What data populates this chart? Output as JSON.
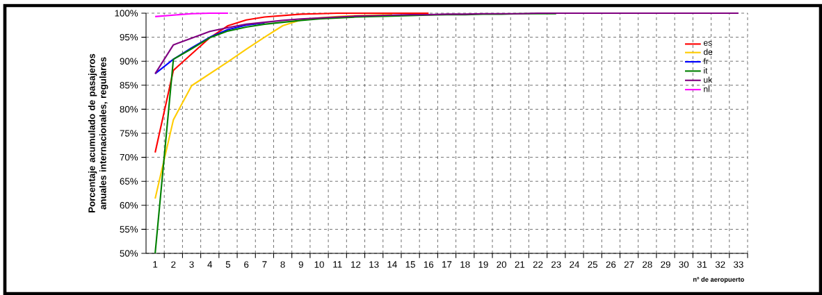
{
  "chart_data": {
    "type": "line",
    "xlabel": "nº de aeropuerto",
    "ylabel": "Porcentaje acumulado de pasajeros anuales internacionales, regulares",
    "categories": [
      "1",
      "2",
      "3",
      "4",
      "5",
      "6",
      "7",
      "8",
      "9",
      "10",
      "11",
      "12",
      "13",
      "14",
      "15",
      "16",
      "17",
      "18",
      "19",
      "20",
      "21",
      "22",
      "23",
      "24",
      "25",
      "26",
      "27",
      "28",
      "29",
      "30",
      "31",
      "32",
      "33"
    ],
    "ylim": [
      50,
      100
    ],
    "yticks": [
      {
        "value": 50,
        "label": "50%"
      },
      {
        "value": 55,
        "label": "55%"
      },
      {
        "value": 60,
        "label": "60%"
      },
      {
        "value": 65,
        "label": "65%"
      },
      {
        "value": 70,
        "label": "70%"
      },
      {
        "value": 75,
        "label": "75%"
      },
      {
        "value": 80,
        "label": "80%"
      },
      {
        "value": 85,
        "label": "85%"
      },
      {
        "value": 90,
        "label": "90%"
      },
      {
        "value": 95,
        "label": "95%"
      },
      {
        "value": 100,
        "label": "100%"
      }
    ],
    "grid": true,
    "legend": "top right",
    "marker": "none",
    "line_style": "solid",
    "series": [
      {
        "name": "es",
        "color": "#ff0000",
        "values": [
          71.0,
          88.1,
          91.5,
          94.9,
          97.4,
          98.6,
          99.2,
          99.5,
          99.8,
          99.9,
          100,
          100,
          100,
          100,
          100,
          100,
          null,
          null,
          null,
          null,
          null,
          null,
          null,
          null,
          null,
          null,
          null,
          null,
          null,
          null,
          null,
          null,
          null
        ]
      },
      {
        "name": "de",
        "color": "#ffcc00",
        "values": [
          61.4,
          77.8,
          84.9,
          87.4,
          89.9,
          92.5,
          95.0,
          97.4,
          98.6,
          99.0,
          99.3,
          99.5,
          99.6,
          99.7,
          null,
          null,
          null,
          null,
          null,
          null,
          null,
          null,
          null,
          null,
          null,
          null,
          null,
          null,
          null,
          null,
          null,
          null,
          null
        ]
      },
      {
        "name": "fr",
        "color": "#0000ff",
        "values": [
          87.4,
          90.4,
          92.8,
          95.0,
          96.6,
          97.5,
          98.0,
          null,
          null,
          null,
          null,
          null,
          null,
          null,
          null,
          null,
          null,
          null,
          null,
          null,
          null,
          null,
          null,
          null,
          null,
          null,
          null,
          null,
          null,
          null,
          null,
          null,
          null
        ]
      },
      {
        "name": "it",
        "color": "#008000",
        "values": [
          50,
          90.4,
          92.6,
          94.9,
          96.3,
          97.1,
          97.7,
          98.1,
          98.5,
          98.8,
          99.0,
          99.2,
          99.3,
          99.4,
          99.5,
          99.6,
          99.7,
          99.7,
          99.8,
          99.8,
          99.9,
          99.9,
          99.9,
          null,
          null,
          null,
          null,
          null,
          null,
          null,
          null,
          null,
          null
        ]
      },
      {
        "name": "uk",
        "color": "#800080",
        "values": [
          87.4,
          93.4,
          94.8,
          96.2,
          97.0,
          97.7,
          98.1,
          98.5,
          98.8,
          99.0,
          99.2,
          99.4,
          99.5,
          99.6,
          99.7,
          99.7,
          99.8,
          99.8,
          99.9,
          99.9,
          99.9,
          100,
          100,
          100,
          100,
          100,
          100,
          100,
          100,
          100,
          100,
          100,
          100
        ]
      },
      {
        "name": "nl",
        "color": "#ff00ff",
        "values": [
          99.3,
          99.6,
          99.9,
          100,
          100,
          null,
          null,
          null,
          null,
          null,
          null,
          null,
          null,
          null,
          null,
          null,
          null,
          null,
          null,
          null,
          null,
          null,
          null,
          null,
          null,
          null,
          null,
          null,
          null,
          null,
          null,
          null,
          null
        ]
      }
    ]
  }
}
